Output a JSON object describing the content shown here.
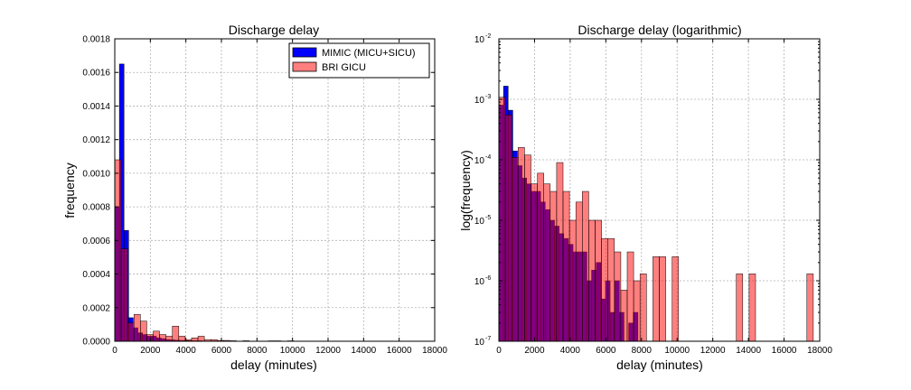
{
  "colors": {
    "mimic": "#0000ff",
    "bri": "#ff0000",
    "bri_alpha": 0.5,
    "edge": "#000000"
  },
  "chart_data": [
    {
      "type": "bar",
      "title": "Discharge delay",
      "xlabel": "delay (minutes)",
      "ylabel": "frequency",
      "xlim": [
        0,
        18000
      ],
      "ylim": [
        0,
        0.0018
      ],
      "yscale": "linear",
      "grid": true,
      "legend": "top-right",
      "xticks": [
        0,
        2000,
        4000,
        6000,
        8000,
        10000,
        12000,
        14000,
        16000,
        18000
      ],
      "xtick_labels": [
        "0",
        "2000",
        "4000",
        "6000",
        "8000",
        "10000",
        "12000",
        "14000",
        "16000",
        "18000"
      ],
      "yticks": [
        0,
        0.0002,
        0.0004,
        0.0006,
        0.0008,
        0.001,
        0.0012,
        0.0014,
        0.0016,
        0.0018
      ],
      "ytick_labels": [
        "0.0000",
        "0.0002",
        "0.0004",
        "0.0006",
        "0.0008",
        "0.0010",
        "0.0012",
        "0.0014",
        "0.0016",
        "0.0018"
      ],
      "series": [
        {
          "name": "MIMIC (MICU+SICU)",
          "color": "#0000ff",
          "bin_width": 260,
          "bin_start": 0,
          "values": [
            0.0008,
            0.00165,
            0.00066,
            0.00014,
            8e-05,
            5e-05,
            4e-05,
            3e-05,
            3e-05,
            2e-05,
            1.5e-05,
            1e-05,
            8e-06,
            6e-06,
            5e-06,
            4e-06,
            3e-06,
            3e-06,
            3e-06,
            1e-06,
            1.5e-06,
            2e-06,
            5e-07,
            1e-06,
            3e-07,
            1e-06,
            3e-07,
            1e-07,
            2e-07,
            3e-07,
            1e-07,
            0.0,
            0.0,
            0.0,
            0.0,
            0.0,
            0.0,
            0.0,
            0.0,
            0.0,
            1e-07
          ]
        },
        {
          "name": "BRI GICU",
          "color": "#ff0000",
          "bin_width": 360,
          "bin_start": 0,
          "values": [
            0.00108,
            0.00055,
            0.00011,
            0.00016,
            0.00012,
            4e-05,
            6e-05,
            4e-05,
            3e-05,
            9e-05,
            3e-05,
            1e-05,
            2e-05,
            3e-05,
            1e-05,
            1e-05,
            5e-06,
            5e-06,
            3e-06,
            7e-07,
            3e-06,
            1e-06,
            1.3e-06,
            0.0,
            2.5e-06,
            2.5e-06,
            0.0,
            2.5e-06,
            0.0,
            0.0,
            0.0,
            0.0,
            0.0,
            0.0,
            0.0,
            0.0,
            0.0,
            1.3e-06,
            0.0,
            1.3e-06,
            0.0,
            0.0,
            0.0,
            0.0,
            0.0,
            0.0,
            0.0,
            0.0,
            1.3e-06
          ]
        }
      ]
    },
    {
      "type": "bar",
      "title": "Discharge delay (logarithmic)",
      "xlabel": "delay (minutes)",
      "ylabel": "log(frequency)",
      "xlim": [
        0,
        18000
      ],
      "ylim": [
        1e-07,
        0.01
      ],
      "yscale": "log",
      "grid": true,
      "legend": "none",
      "xticks": [
        0,
        2000,
        4000,
        6000,
        8000,
        10000,
        12000,
        14000,
        16000,
        18000
      ],
      "xtick_labels": [
        "0",
        "2000",
        "4000",
        "6000",
        "8000",
        "10000",
        "12000",
        "14000",
        "16000",
        "18000"
      ],
      "yticks": [
        1e-07,
        1e-06,
        1e-05,
        0.0001,
        0.001,
        0.01
      ],
      "ytick_labels": [
        {
          "base": "10",
          "exp": "-7"
        },
        {
          "base": "10",
          "exp": "-6"
        },
        {
          "base": "10",
          "exp": "-5"
        },
        {
          "base": "10",
          "exp": "-4"
        },
        {
          "base": "10",
          "exp": "-3"
        },
        {
          "base": "10",
          "exp": "-2"
        }
      ],
      "series": [
        {
          "name": "MIMIC (MICU+SICU)",
          "color": "#0000ff",
          "bin_width": 260,
          "bin_start": 0,
          "values": [
            0.0008,
            0.00165,
            0.00066,
            0.00014,
            8e-05,
            5e-05,
            4e-05,
            3e-05,
            3e-05,
            2e-05,
            1.5e-05,
            1e-05,
            8e-06,
            6e-06,
            5e-06,
            4e-06,
            3e-06,
            3e-06,
            3e-06,
            1e-06,
            1.5e-06,
            2e-06,
            5e-07,
            1e-06,
            3e-07,
            1e-06,
            3e-07,
            1e-07,
            2e-07,
            3e-07,
            1e-07,
            0.0,
            0.0,
            0.0,
            0.0,
            0.0,
            0.0,
            0.0,
            0.0,
            0.0,
            1e-07
          ]
        },
        {
          "name": "BRI GICU",
          "color": "#ff0000",
          "bin_width": 360,
          "bin_start": 0,
          "values": [
            0.00108,
            0.00055,
            0.00011,
            0.00016,
            0.00012,
            4e-05,
            6e-05,
            4e-05,
            3e-05,
            9e-05,
            3e-05,
            1e-05,
            2e-05,
            3e-05,
            1e-05,
            1e-05,
            5e-06,
            5e-06,
            3e-06,
            7e-07,
            3e-06,
            1e-06,
            1.3e-06,
            0.0,
            2.5e-06,
            2.5e-06,
            0.0,
            2.5e-06,
            0.0,
            0.0,
            0.0,
            0.0,
            0.0,
            0.0,
            0.0,
            0.0,
            0.0,
            1.3e-06,
            0.0,
            1.3e-06,
            0.0,
            0.0,
            0.0,
            0.0,
            0.0,
            0.0,
            0.0,
            0.0,
            1.3e-06
          ]
        }
      ]
    }
  ]
}
